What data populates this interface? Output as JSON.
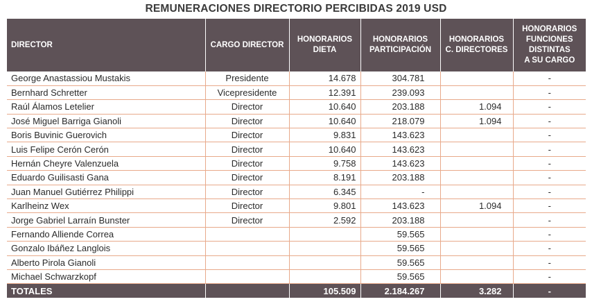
{
  "title": "REMUNERACIONES DIRECTORIO PERCIBIDAS 2019 USD",
  "headers": {
    "director": "DIRECTOR",
    "cargo": "CARGO DIRECTOR",
    "dieta_l1": "HONORARIOS",
    "dieta_l2": "DIETA",
    "part_l1": "HONORARIOS",
    "part_l2": "PARTICIPACIÓN",
    "cdir_l1": "HONORARIOS",
    "cdir_l2": "C. DIRECTORES",
    "otras_l1": "HONORARIOS",
    "otras_l2": "FUNCIONES",
    "otras_l3": "DISTINTAS",
    "otras_l4": "A SU CARGO"
  },
  "rows": [
    {
      "name": "George Anastassiou Mustakis",
      "cargo": "Presidente",
      "dieta": "14.678",
      "participacion": "304.781",
      "cdir": "",
      "otras": "-"
    },
    {
      "name": "Bernhard Schretter",
      "cargo": "Vicepresidente",
      "dieta": "12.391",
      "participacion": "239.093",
      "cdir": "",
      "otras": "-"
    },
    {
      "name": "Raúl Álamos Letelier",
      "cargo": "Director",
      "dieta": "10.640",
      "participacion": "203.188",
      "cdir": "1.094",
      "otras": "-"
    },
    {
      "name": "José Miguel Barriga Gianoli",
      "cargo": "Director",
      "dieta": "10.640",
      "participacion": "218.079",
      "cdir": "1.094",
      "otras": "-"
    },
    {
      "name": "Boris Buvinic Guerovich",
      "cargo": "Director",
      "dieta": "9.831",
      "participacion": "143.623",
      "cdir": "",
      "otras": "-"
    },
    {
      "name": "Luis Felipe Cerón Cerón",
      "cargo": "Director",
      "dieta": "10.640",
      "participacion": "143.623",
      "cdir": "",
      "otras": "-"
    },
    {
      "name": "Hernán Cheyre Valenzuela",
      "cargo": "Director",
      "dieta": "9.758",
      "participacion": "143.623",
      "cdir": "",
      "otras": "-"
    },
    {
      "name": "Eduardo Guilisasti Gana",
      "cargo": "Director",
      "dieta": "8.191",
      "participacion": "203.188",
      "cdir": "",
      "otras": "-"
    },
    {
      "name": "Juan Manuel Gutiérrez Philippi",
      "cargo": "Director",
      "dieta": "6.345",
      "participacion": "-",
      "cdir": "",
      "otras": "-"
    },
    {
      "name": "Karlheinz Wex",
      "cargo": "Director",
      "dieta": "9.801",
      "participacion": "143.623",
      "cdir": "1.094",
      "otras": "-"
    },
    {
      "name": "Jorge Gabriel Larraín Bunster",
      "cargo": "Director",
      "dieta": "2.592",
      "participacion": "203.188",
      "cdir": "",
      "otras": "-"
    },
    {
      "name": "Fernando Alliende Correa",
      "cargo": "",
      "dieta": "",
      "participacion": "59.565",
      "cdir": "",
      "otras": "-"
    },
    {
      "name": "Gonzalo Ibáñez Langlois",
      "cargo": "",
      "dieta": "",
      "participacion": "59.565",
      "cdir": "",
      "otras": "-"
    },
    {
      "name": "Alberto Pirola Gianoli",
      "cargo": "",
      "dieta": "",
      "participacion": "59.565",
      "cdir": "",
      "otras": "-"
    },
    {
      "name": "Michael Schwarzkopf",
      "cargo": "",
      "dieta": "",
      "participacion": "59.565",
      "cdir": "",
      "otras": "-"
    }
  ],
  "totals": {
    "label": "TOTALES",
    "dieta": "105.509",
    "participacion": "2.184.267",
    "cdir": "3.282",
    "otras": "-"
  }
}
